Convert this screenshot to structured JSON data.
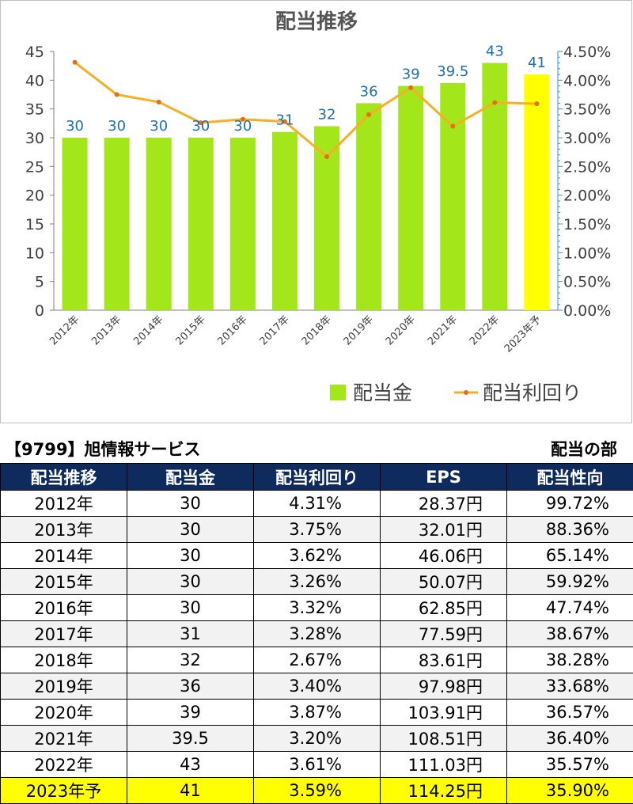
{
  "chart_data": {
    "type": "bar",
    "title": "配当推移",
    "categories": [
      "2012年",
      "2013年",
      "2014年",
      "2015年",
      "2016年",
      "2017年",
      "2018年",
      "2019年",
      "2020年",
      "2021年",
      "2022年",
      "2023年予"
    ],
    "series": [
      {
        "name": "配当金",
        "type": "bar",
        "axis": "left",
        "color": "#a3e61a",
        "highlight_color": "#ffff00",
        "highlight_index": 11,
        "values": [
          30,
          30,
          30,
          30,
          30,
          31,
          32,
          36,
          39,
          39.5,
          43,
          41
        ],
        "labels": [
          "30",
          "30",
          "30",
          "30",
          "30",
          "31",
          "32",
          "36",
          "39",
          "39.5",
          "43",
          "41"
        ]
      },
      {
        "name": "配当利回り",
        "type": "line",
        "axis": "right",
        "color": "#f5b122",
        "values": [
          4.31,
          3.75,
          3.62,
          3.26,
          3.32,
          3.28,
          2.67,
          3.4,
          3.87,
          3.2,
          3.61,
          3.59
        ]
      }
    ],
    "y_left": {
      "min": 0,
      "max": 45,
      "ticks": [
        "0",
        "5",
        "10",
        "15",
        "20",
        "25",
        "30",
        "35",
        "40",
        "45"
      ]
    },
    "y_right": {
      "min": 0,
      "max": 4.5,
      "ticks": [
        "0.00%",
        "0.50%",
        "1.00%",
        "1.50%",
        "2.00%",
        "2.50%",
        "3.00%",
        "3.50%",
        "4.00%",
        "4.50%"
      ]
    },
    "legend_position": "bottom-right",
    "grid": false
  },
  "table": {
    "company": "【9799】旭情報サービス",
    "section": "配当の部",
    "headers": [
      "配当推移",
      "配当金",
      "配当利回り",
      "EPS",
      "配当性向"
    ],
    "rows": [
      [
        "2012年",
        "30",
        "4.31%",
        "28.37円",
        "99.72%"
      ],
      [
        "2013年",
        "30",
        "3.75%",
        "32.01円",
        "88.36%"
      ],
      [
        "2014年",
        "30",
        "3.62%",
        "46.06円",
        "65.14%"
      ],
      [
        "2015年",
        "30",
        "3.26%",
        "50.07円",
        "59.92%"
      ],
      [
        "2016年",
        "30",
        "3.32%",
        "62.85円",
        "47.74%"
      ],
      [
        "2017年",
        "31",
        "3.28%",
        "77.59円",
        "38.67%"
      ],
      [
        "2018年",
        "32",
        "2.67%",
        "83.61円",
        "38.28%"
      ],
      [
        "2019年",
        "36",
        "3.40%",
        "97.98円",
        "33.68%"
      ],
      [
        "2020年",
        "39",
        "3.87%",
        "103.91円",
        "36.57%"
      ],
      [
        "2021年",
        "39.5",
        "3.20%",
        "108.51円",
        "36.40%"
      ],
      [
        "2022年",
        "43",
        "3.61%",
        "111.03円",
        "35.57%"
      ],
      [
        "2023年予",
        "41",
        "3.59%",
        "114.25円",
        "35.90%"
      ]
    ],
    "highlight_row": 11,
    "colors": {
      "header_bg": "#0f2a5c",
      "stripe": "#f2f2f2",
      "highlight": "#ffff00"
    }
  }
}
